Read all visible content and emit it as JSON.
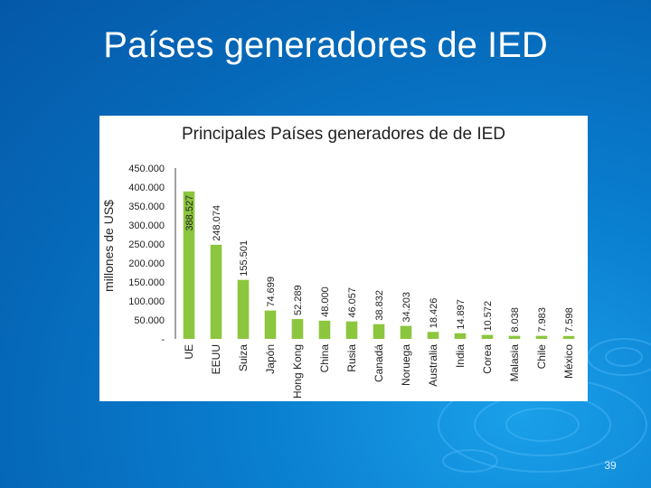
{
  "slide": {
    "title": "Países generadores de IED",
    "page_number": "39"
  },
  "colors": {
    "background": "#0668b8",
    "bar": "#8cc63f",
    "chart_background": "#ffffff"
  },
  "chart_data": {
    "type": "bar",
    "title": "Principales Países generadores de de IED",
    "ylabel": "millones de US$",
    "xlabel": "",
    "ylim": [
      0,
      450000
    ],
    "yticks": [
      "-",
      "50.000",
      "100.000",
      "150.000",
      "200.000",
      "250.000",
      "300.000",
      "350.000",
      "400.000",
      "450.000"
    ],
    "categories": [
      "UE",
      "EEUU",
      "Suiza",
      "Japón",
      "Hong Kong",
      "China",
      "Rusia",
      "Canadá",
      "Noruega",
      "Australia",
      "India",
      "Corea",
      "Malasia",
      "Chile",
      "México"
    ],
    "values": [
      388527,
      248074,
      155501,
      74699,
      52289,
      48000,
      46057,
      38832,
      34203,
      18426,
      14897,
      10572,
      8038,
      7983,
      7598
    ],
    "value_labels": [
      "388.527",
      "248.074",
      "155.501",
      "74.699",
      "52.289",
      "48.000",
      "46.057",
      "38.832",
      "34.203",
      "18.426",
      "14.897",
      "10.572",
      "8.038",
      "7.983",
      "7.598"
    ],
    "legend": "none",
    "grid": false
  }
}
